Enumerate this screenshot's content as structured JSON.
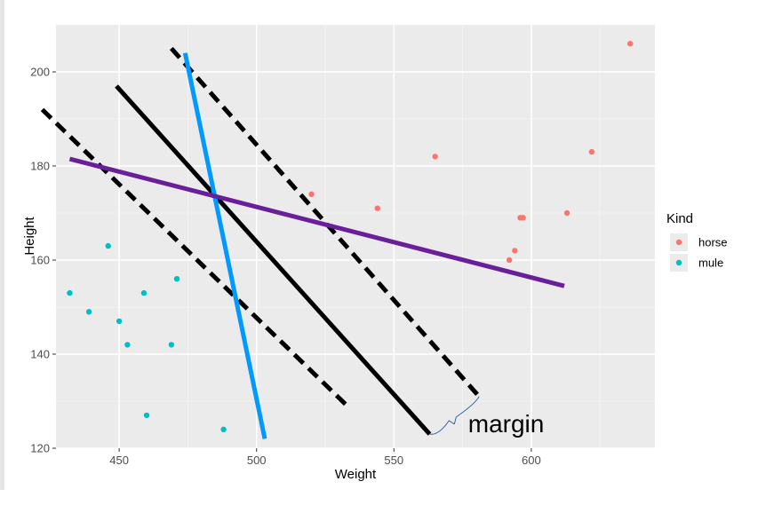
{
  "chart_data": {
    "type": "scatter",
    "title": "",
    "xlabel": "Weight",
    "ylabel": "Height",
    "xlim": [
      427,
      645
    ],
    "ylim": [
      120,
      210
    ],
    "xticks": [
      450,
      500,
      550,
      600
    ],
    "yticks": [
      120,
      140,
      160,
      180,
      200
    ],
    "grid": true,
    "legend": {
      "title": "Kind",
      "position": "right",
      "entries": [
        "horse",
        "mule"
      ]
    },
    "series": [
      {
        "name": "horse",
        "color": "#F8766D",
        "points": [
          [
            520,
            174
          ],
          [
            544,
            171
          ],
          [
            565,
            182
          ],
          [
            592,
            160
          ],
          [
            594,
            162
          ],
          [
            596,
            169
          ],
          [
            597,
            169
          ],
          [
            613,
            170
          ],
          [
            622,
            183
          ],
          [
            636,
            206
          ]
        ]
      },
      {
        "name": "mule",
        "color": "#00BFC4",
        "points": [
          [
            432,
            153
          ],
          [
            439,
            149
          ],
          [
            446,
            163
          ],
          [
            450,
            147
          ],
          [
            453,
            142
          ],
          [
            459,
            153
          ],
          [
            460,
            127
          ],
          [
            469,
            142
          ],
          [
            471,
            156
          ],
          [
            488,
            124
          ]
        ]
      }
    ],
    "lines": [
      {
        "color": "#000000",
        "dashed": false,
        "width": 5,
        "from": [
          449,
          197
        ],
        "to": [
          563,
          123
        ]
      },
      {
        "color": "#000000",
        "dashed": true,
        "width": 5,
        "from": [
          422,
          192
        ],
        "to": [
          533,
          129
        ]
      },
      {
        "color": "#000000",
        "dashed": true,
        "width": 5,
        "from": [
          469,
          205
        ],
        "to": [
          581,
          131
        ]
      },
      {
        "color": "#0099FF",
        "dashed": false,
        "width": 5,
        "from": [
          474,
          204
        ],
        "to": [
          503,
          122
        ]
      },
      {
        "color": "#6A1F9A",
        "dashed": false,
        "width": 5,
        "from": [
          432,
          181.5
        ],
        "to": [
          612,
          154.5
        ]
      }
    ],
    "annotations": [
      {
        "text": "margin",
        "x": 577,
        "y": 125.5
      }
    ],
    "brace": {
      "color": "#3a5fa8",
      "from": [
        563,
        123
      ],
      "to": [
        581,
        131
      ]
    }
  }
}
